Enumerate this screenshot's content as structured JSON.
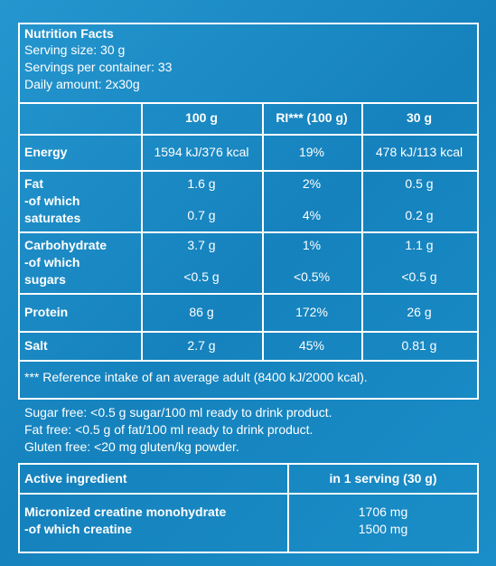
{
  "header": {
    "title": "Nutrition Facts",
    "lines": [
      "Serving size: 30 g",
      "Servings per container: 33",
      "Daily amount: 2x30g"
    ]
  },
  "table": {
    "columns": [
      "100 g",
      "RI*** (100 g)",
      "30 g"
    ],
    "rows": [
      {
        "label": [
          "Energy"
        ],
        "cells": [
          [
            "1594 kJ/376 kcal"
          ],
          [
            "19%"
          ],
          [
            "478 kJ/113 kcal"
          ]
        ]
      },
      {
        "label": [
          "Fat",
          "-of which",
          "saturates"
        ],
        "cells": [
          [
            "1.6 g",
            "0.7 g"
          ],
          [
            "2%",
            "4%"
          ],
          [
            "0.5 g",
            "0.2 g"
          ]
        ]
      },
      {
        "label": [
          "Carbohydrate",
          "-of which",
          "sugars"
        ],
        "cells": [
          [
            "3.7 g",
            "<0.5 g"
          ],
          [
            "1%",
            "<0.5%"
          ],
          [
            "1.1 g",
            "<0.5 g"
          ]
        ]
      },
      {
        "label": [
          "Protein"
        ],
        "cells": [
          [
            "86 g"
          ],
          [
            "172%"
          ],
          [
            "26 g"
          ]
        ]
      },
      {
        "label": [
          "Salt"
        ],
        "cells": [
          [
            "2.7 g"
          ],
          [
            "45%"
          ],
          [
            "0.81 g"
          ]
        ]
      }
    ],
    "footnote": "*** Reference intake of an average adult (8400 kJ/2000 kcal)."
  },
  "notes": [
    "Sugar free: <0.5 g sugar/100 ml ready to drink product.",
    "Fat free: <0.5 g of fat/100 ml ready to drink product.",
    "Gluten free: <20 mg gluten/kg powder."
  ],
  "active": {
    "columns": [
      "Active ingredient",
      "in 1 serving (30 g)"
    ],
    "label": [
      "Micronized creatine monohydrate",
      "-of which creatine"
    ],
    "values": [
      "1706 mg",
      "1500 mg"
    ]
  }
}
